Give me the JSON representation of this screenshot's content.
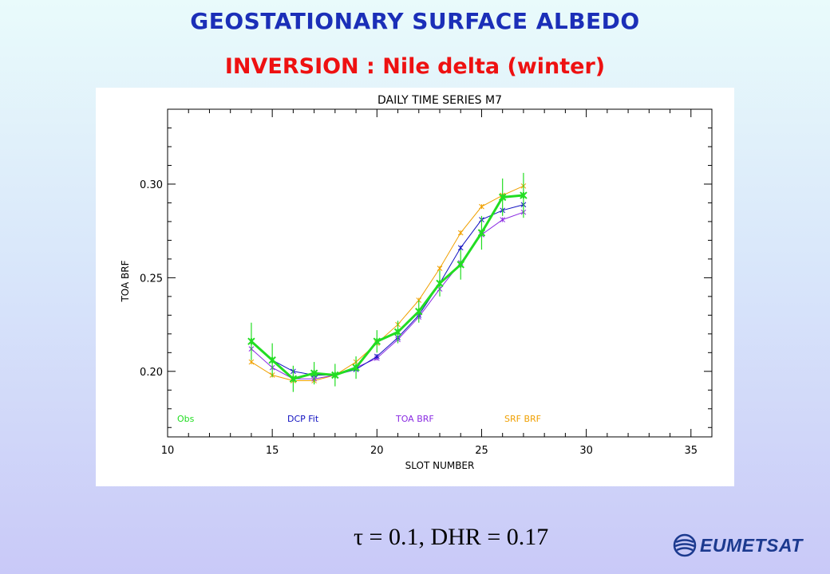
{
  "header": {
    "title": "GEOSTATIONARY SURFACE ALBEDO",
    "subtitle": "INVERSION : Nile delta (winter)"
  },
  "footer": {
    "params": "τ = 0.1, DHR = 0.17",
    "logo_text": "EUMETSAT"
  },
  "colors": {
    "obs": "#22dd22",
    "dcp_fit": "#1010c0",
    "toa_brf": "#8a2be2",
    "srf_brf": "#f0a000",
    "title": "#1b2fb8",
    "subtitle": "#ee1111"
  },
  "chart_data": {
    "type": "line",
    "title": "DAILY TIME SERIES M7",
    "xlabel": "SLOT NUMBER",
    "ylabel": "TOA BRF",
    "xlim": [
      10,
      36
    ],
    "ylim": [
      0.165,
      0.34
    ],
    "xticks": [
      10,
      15,
      20,
      25,
      30,
      35
    ],
    "xtick_labels": [
      "10",
      "15",
      "20",
      "25",
      "30",
      "35"
    ],
    "yticks": [
      0.2,
      0.25,
      0.3
    ],
    "ytick_labels": [
      "0.20",
      "0.25",
      "0.30"
    ],
    "legend_position": "bottom",
    "grid": false,
    "series": [
      {
        "name": "Obs",
        "color": "#22dd22",
        "x": [
          14,
          15,
          16,
          17,
          18,
          19,
          20,
          21,
          22,
          23,
          24,
          25,
          26,
          27
        ],
        "values": [
          0.216,
          0.206,
          0.196,
          0.199,
          0.198,
          0.202,
          0.216,
          0.221,
          0.232,
          0.247,
          0.257,
          0.274,
          0.293,
          0.294
        ],
        "errors": [
          0.01,
          0.009,
          0.007,
          0.006,
          0.006,
          0.006,
          0.006,
          0.006,
          0.006,
          0.007,
          0.008,
          0.009,
          0.01,
          0.012
        ]
      },
      {
        "name": "DCP Fit",
        "color": "#1010c0",
        "x": [
          14,
          15,
          16,
          17,
          18,
          19,
          20,
          21,
          22,
          23,
          24,
          25,
          26,
          27
        ],
        "values": [
          0.216,
          0.206,
          0.2,
          0.198,
          0.198,
          0.201,
          0.208,
          0.218,
          0.23,
          0.247,
          0.266,
          0.281,
          0.286,
          0.289
        ]
      },
      {
        "name": "TOA BRF",
        "color": "#8a2be2",
        "x": [
          14,
          15,
          16,
          17,
          18,
          19,
          20,
          21,
          22,
          23,
          24,
          25,
          26,
          27
        ],
        "values": [
          0.212,
          0.202,
          0.196,
          0.196,
          0.198,
          0.202,
          0.207,
          0.217,
          0.229,
          0.244,
          0.258,
          0.273,
          0.281,
          0.285
        ]
      },
      {
        "name": "SRF BRF",
        "color": "#f0a000",
        "x": [
          14,
          15,
          16,
          17,
          18,
          19,
          20,
          21,
          22,
          23,
          24,
          25,
          26,
          27
        ],
        "values": [
          0.205,
          0.198,
          0.195,
          0.195,
          0.198,
          0.205,
          0.215,
          0.225,
          0.238,
          0.255,
          0.274,
          0.288,
          0.294,
          0.299
        ]
      }
    ]
  }
}
